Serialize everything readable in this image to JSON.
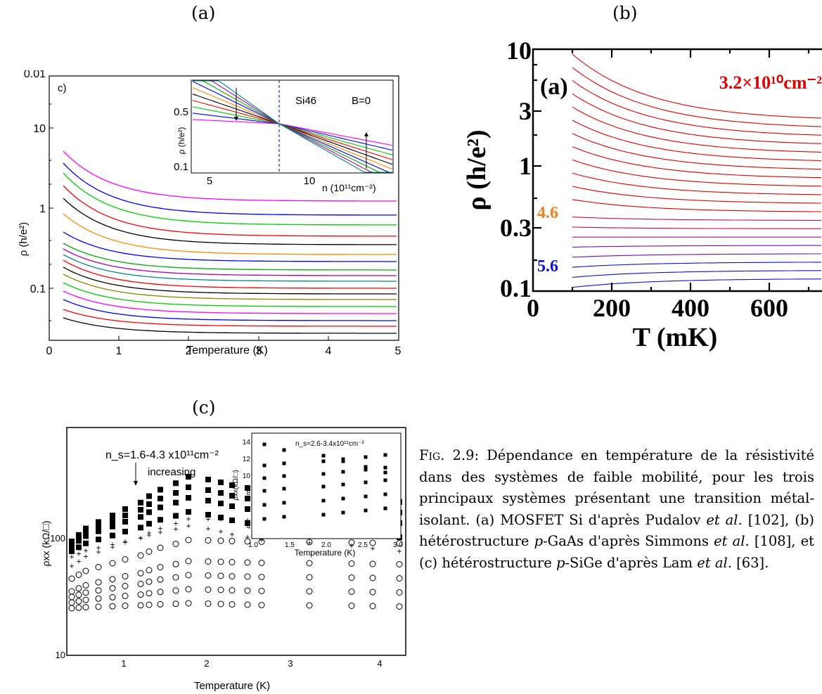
{
  "labels": {
    "a": "(a)",
    "b": "(b)",
    "c": "(c)"
  },
  "panel_a": {
    "tag": "c)",
    "xlabel": "Temperature (K)",
    "ylabel": "ρ (h/e²)",
    "yticks": [
      "0.01",
      "10",
      "1",
      "0.1"
    ],
    "xticks": [
      "0",
      "1",
      "2",
      "3",
      "4",
      "5"
    ],
    "inset": {
      "sample": "Si46",
      "field": "B=0",
      "ylabel": "ρ (h/e²)",
      "yticks": [
        "0.5",
        "0.1"
      ],
      "xticks": [
        "5",
        "10"
      ],
      "xlabel": "n (10¹¹cm⁻²)"
    }
  },
  "panel_b": {
    "tag": "(a)",
    "top_density": "3.2×10¹⁰cm⁻²",
    "mid_density": "4.6",
    "low_density": "5.6",
    "ylabel": "ρ (h/e²)",
    "xlabel": "T (mK)",
    "yticks": [
      "10",
      "3",
      "1",
      "0.3",
      "0.1"
    ],
    "xticks": [
      "0",
      "200",
      "400",
      "600"
    ],
    "colors": {
      "top": "#e00000",
      "mid": "#f08020",
      "low": "#1010d0"
    }
  },
  "panel_c": {
    "annotation": "n_s=1.6-4.3 x10¹¹cm⁻²",
    "arrow_text": "increasing",
    "ylabel": "ρxx (kΩ/□)",
    "xlabel": "Temperature (K)",
    "yticks": [
      "100",
      "10"
    ],
    "xticks": [
      "1",
      "2",
      "3",
      "4"
    ],
    "inset": {
      "annotation": "n_s=2.6-3.4x10¹¹cm⁻²",
      "ylabel": "ρxx(kΩ/□)",
      "xlabel": "Temperature (K)",
      "yticks": [
        "14",
        "12",
        "10",
        "8",
        "6",
        "4"
      ],
      "xticks": [
        "1.0",
        "1.5",
        "2.0",
        "2.5",
        "3.0"
      ]
    }
  },
  "caption": {
    "fig": "Fig. 2.9:",
    "text": " Dépendance en température de la résistivité dans des systèmes de faible mobilité, pour les trois principaux systèmes présentant une transition métal-isolant. (a) MOSFET Si d'après Pudalov ",
    "etal1": "et al.",
    "t2": " [102], (b) hétérostructure ",
    "p1": "p",
    "t3": "-GaAs d'après Simmons ",
    "etal2": "et al.",
    "t4": " [108], et (c) hétérostructure ",
    "p2": "p",
    "t5": "-SiGe d'après Lam ",
    "etal3": "et al.",
    "t6": " [63]."
  }
}
